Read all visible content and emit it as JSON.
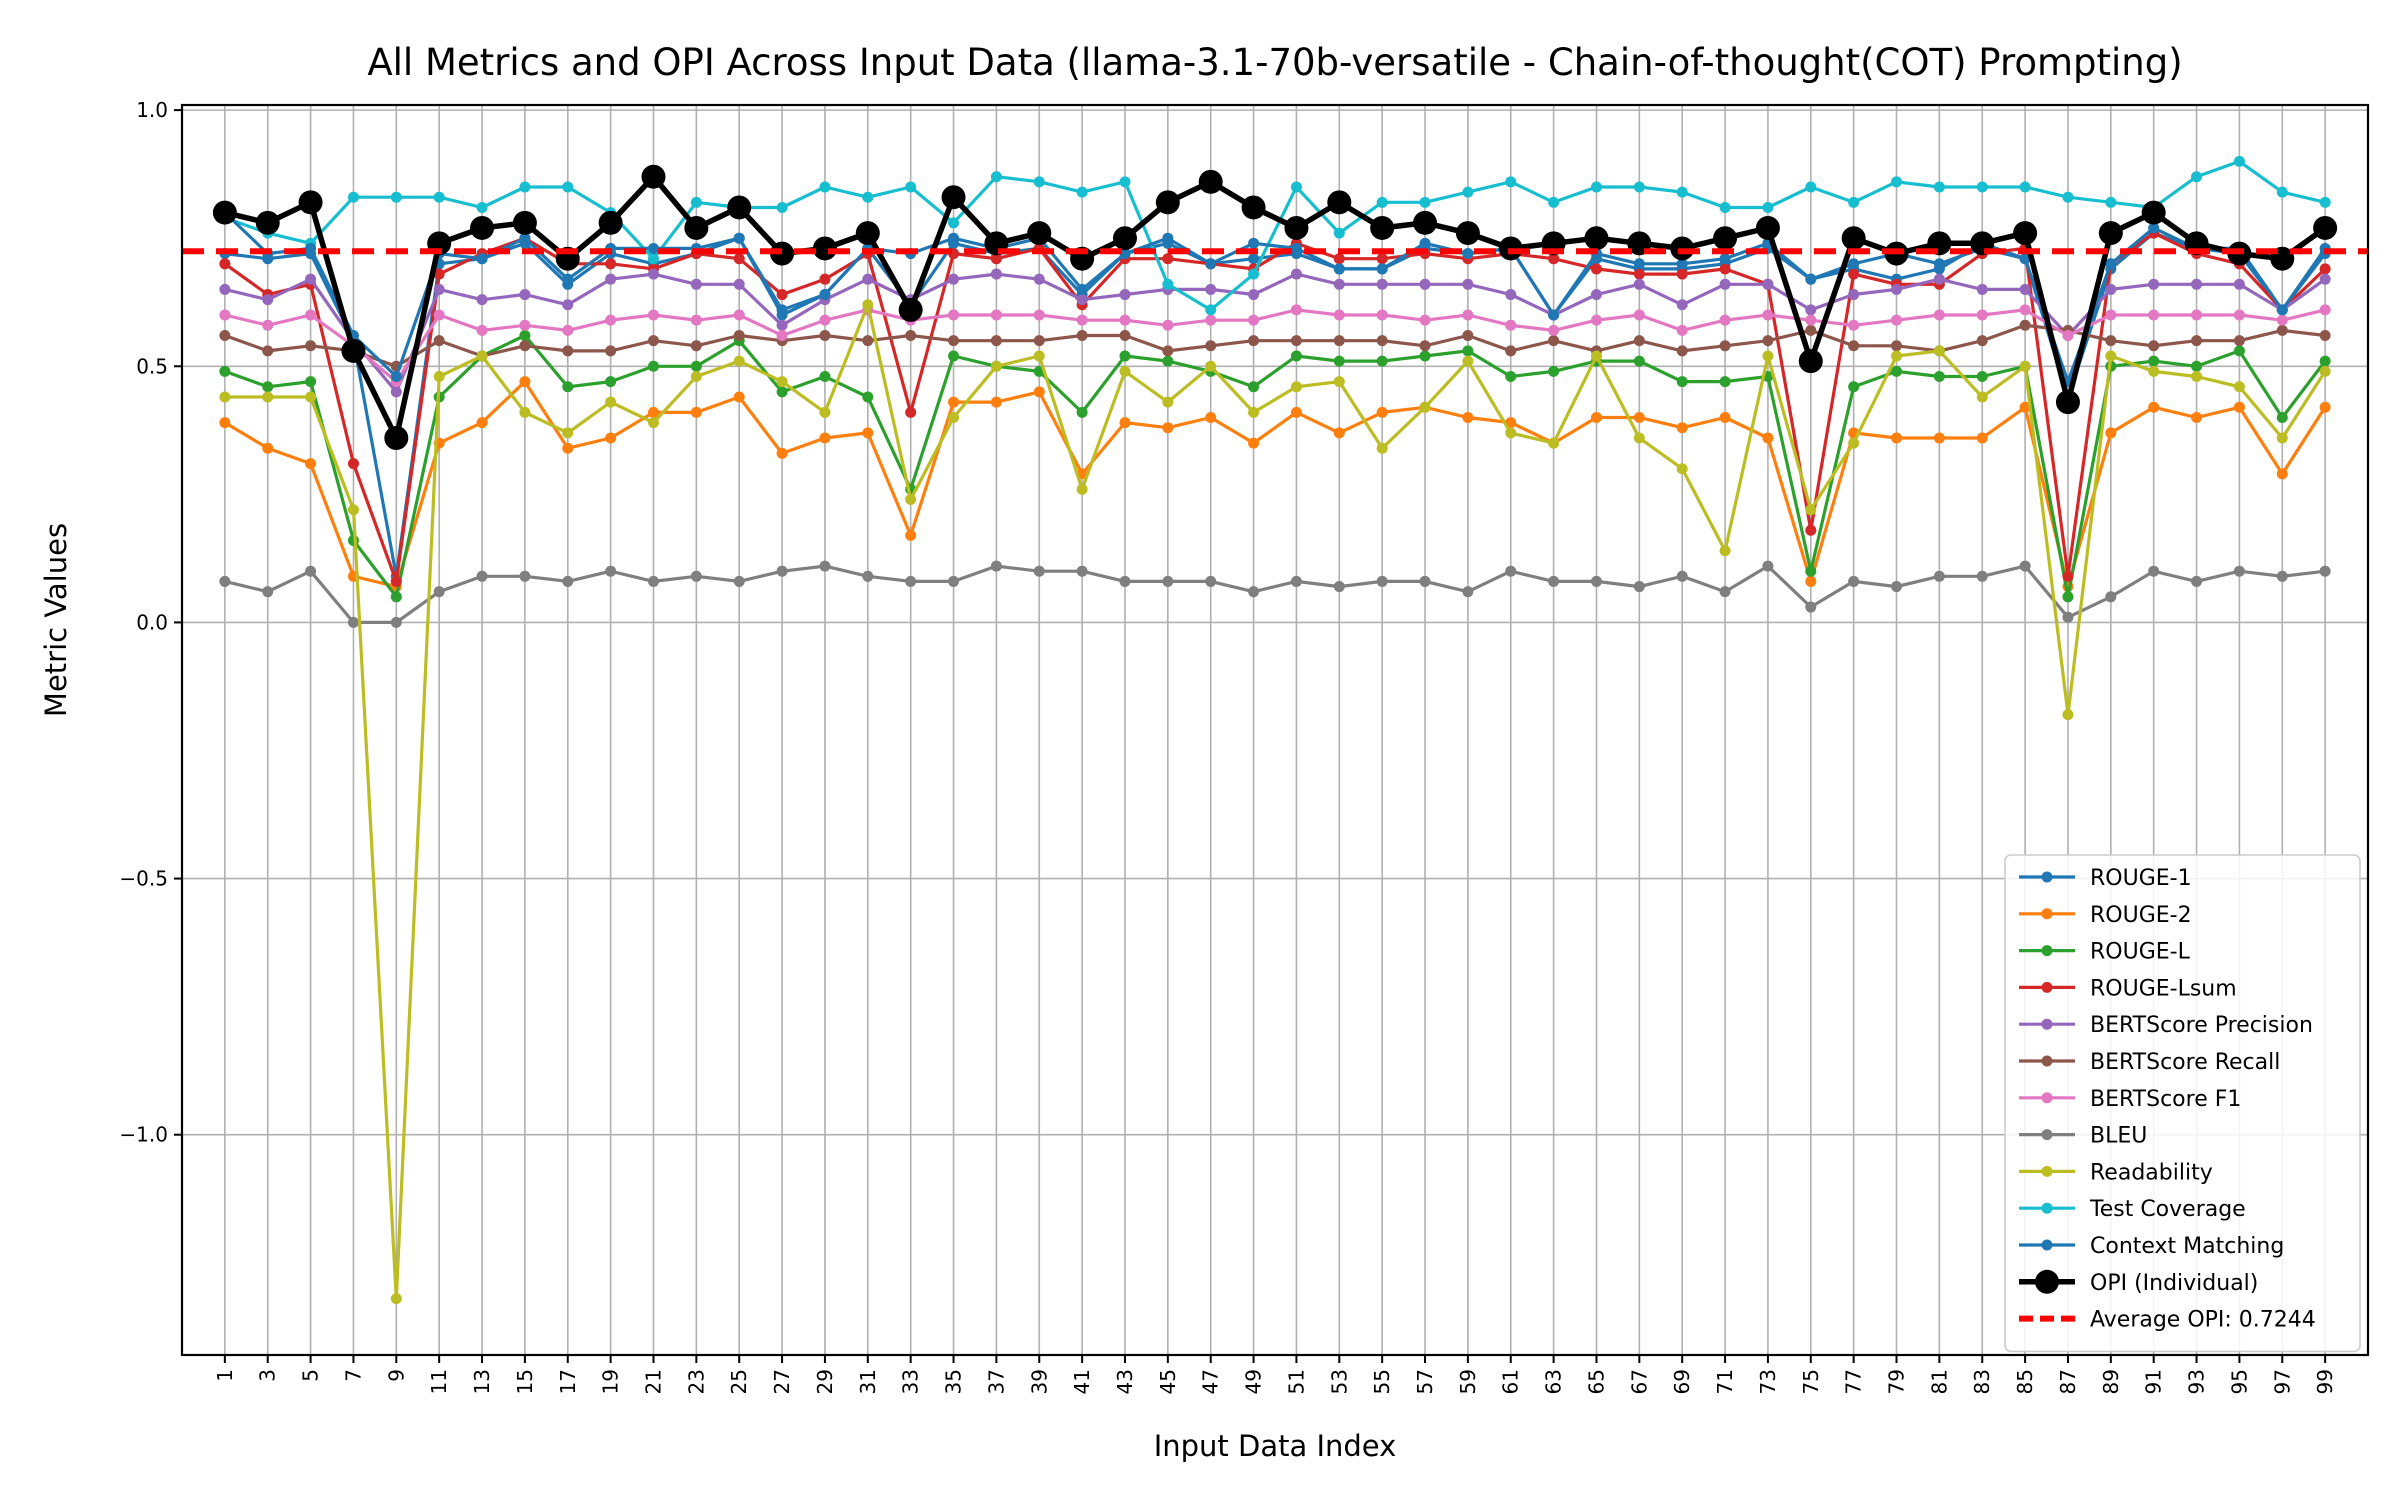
{
  "chart_data": {
    "type": "line",
    "title": "All Metrics and OPI Across Input Data (llama-3.1-70b-versatile - Chain-of-thought(COT) Prompting)",
    "xlabel": "Input Data Index",
    "ylabel": "Metric Values",
    "xlim": [
      -1,
      101
    ],
    "ylim": [
      -1.43,
      1.01
    ],
    "yticks": [
      -1.0,
      -0.5,
      0.0,
      0.5,
      1.0
    ],
    "ytick_labels": [
      "−1.0",
      "−0.5",
      "0.0",
      "0.5",
      "1.0"
    ],
    "xticks": [
      1,
      3,
      5,
      7,
      9,
      11,
      13,
      15,
      17,
      19,
      21,
      23,
      25,
      27,
      29,
      31,
      33,
      35,
      37,
      39,
      41,
      43,
      45,
      47,
      49,
      51,
      53,
      55,
      57,
      59,
      61,
      63,
      65,
      67,
      69,
      71,
      73,
      75,
      77,
      79,
      81,
      83,
      85,
      87,
      89,
      91,
      93,
      95,
      97,
      99
    ],
    "x": [
      1,
      3,
      5,
      7,
      9,
      11,
      13,
      15,
      17,
      19,
      21,
      23,
      25,
      27,
      29,
      31,
      33,
      35,
      37,
      39,
      41,
      43,
      45,
      47,
      49,
      51,
      53,
      55,
      57,
      59,
      61,
      63,
      65,
      67,
      69,
      71,
      73,
      75,
      77,
      79,
      81,
      83,
      85,
      87,
      89,
      91,
      93,
      95,
      97,
      99
    ],
    "grid": true,
    "legend_position": "lower-right",
    "series": [
      {
        "name": "ROUGE-1",
        "color": "#1f77b4",
        "values": [
          0.72,
          0.71,
          0.72,
          0.55,
          0.09,
          0.7,
          0.71,
          0.74,
          0.66,
          0.72,
          0.7,
          0.72,
          0.75,
          0.6,
          0.64,
          0.73,
          0.62,
          0.74,
          0.72,
          0.73,
          0.64,
          0.72,
          0.74,
          0.7,
          0.71,
          0.72,
          0.69,
          0.69,
          0.73,
          0.72,
          0.73,
          0.6,
          0.71,
          0.69,
          0.69,
          0.7,
          0.73,
          0.67,
          0.69,
          0.67,
          0.69,
          0.74,
          0.71,
          0.44,
          0.69,
          0.76,
          0.73,
          0.72,
          0.61,
          0.72
        ]
      },
      {
        "name": "ROUGE-2",
        "color": "#ff7f0e",
        "values": [
          0.39,
          0.34,
          0.31,
          0.09,
          0.07,
          0.35,
          0.39,
          0.47,
          0.34,
          0.36,
          0.41,
          0.41,
          0.44,
          0.33,
          0.36,
          0.37,
          0.17,
          0.43,
          0.43,
          0.45,
          0.29,
          0.39,
          0.38,
          0.4,
          0.35,
          0.41,
          0.37,
          0.41,
          0.42,
          0.4,
          0.39,
          0.35,
          0.4,
          0.4,
          0.38,
          0.4,
          0.36,
          0.08,
          0.37,
          0.36,
          0.36,
          0.36,
          0.42,
          0.07,
          0.37,
          0.42,
          0.4,
          0.42,
          0.29,
          0.42
        ]
      },
      {
        "name": "ROUGE-L",
        "color": "#2ca02c",
        "values": [
          0.49,
          0.46,
          0.47,
          0.16,
          0.05,
          0.44,
          0.52,
          0.56,
          0.46,
          0.47,
          0.5,
          0.5,
          0.55,
          0.45,
          0.48,
          0.44,
          0.26,
          0.52,
          0.5,
          0.49,
          0.41,
          0.52,
          0.51,
          0.49,
          0.46,
          0.52,
          0.51,
          0.51,
          0.52,
          0.53,
          0.48,
          0.49,
          0.51,
          0.51,
          0.47,
          0.47,
          0.48,
          0.1,
          0.46,
          0.49,
          0.48,
          0.48,
          0.5,
          0.05,
          0.5,
          0.51,
          0.5,
          0.53,
          0.4,
          0.51
        ]
      },
      {
        "name": "ROUGE-Lsum",
        "color": "#d62728",
        "values": [
          0.7,
          0.64,
          0.66,
          0.31,
          0.08,
          0.68,
          0.72,
          0.75,
          0.7,
          0.7,
          0.69,
          0.72,
          0.71,
          0.64,
          0.67,
          0.72,
          0.41,
          0.72,
          0.71,
          0.73,
          0.62,
          0.71,
          0.71,
          0.7,
          0.69,
          0.74,
          0.71,
          0.71,
          0.72,
          0.71,
          0.72,
          0.71,
          0.69,
          0.68,
          0.68,
          0.69,
          0.66,
          0.18,
          0.68,
          0.66,
          0.66,
          0.72,
          0.73,
          0.09,
          0.7,
          0.76,
          0.72,
          0.7,
          0.61,
          0.69
        ]
      },
      {
        "name": "BERTScore Precision",
        "color": "#9467bd",
        "values": [
          0.65,
          0.63,
          0.67,
          0.55,
          0.45,
          0.65,
          0.63,
          0.64,
          0.62,
          0.67,
          0.68,
          0.66,
          0.66,
          0.58,
          0.63,
          0.67,
          0.63,
          0.67,
          0.68,
          0.67,
          0.63,
          0.64,
          0.65,
          0.65,
          0.64,
          0.68,
          0.66,
          0.66,
          0.66,
          0.66,
          0.64,
          0.6,
          0.64,
          0.66,
          0.62,
          0.66,
          0.66,
          0.61,
          0.64,
          0.65,
          0.67,
          0.65,
          0.65,
          0.56,
          0.65,
          0.66,
          0.66,
          0.66,
          0.61,
          0.67
        ]
      },
      {
        "name": "BERTScore Recall",
        "color": "#8c564b",
        "values": [
          0.56,
          0.53,
          0.54,
          0.53,
          0.5,
          0.55,
          0.52,
          0.54,
          0.53,
          0.53,
          0.55,
          0.54,
          0.56,
          0.55,
          0.56,
          0.55,
          0.56,
          0.55,
          0.55,
          0.55,
          0.56,
          0.56,
          0.53,
          0.54,
          0.55,
          0.55,
          0.55,
          0.55,
          0.54,
          0.56,
          0.53,
          0.55,
          0.53,
          0.55,
          0.53,
          0.54,
          0.55,
          0.57,
          0.54,
          0.54,
          0.53,
          0.55,
          0.58,
          0.57,
          0.55,
          0.54,
          0.55,
          0.55,
          0.57,
          0.56
        ]
      },
      {
        "name": "BERTScore F1",
        "color": "#e377c2",
        "values": [
          0.6,
          0.58,
          0.6,
          0.54,
          0.47,
          0.6,
          0.57,
          0.58,
          0.57,
          0.59,
          0.6,
          0.59,
          0.6,
          0.56,
          0.59,
          0.61,
          0.59,
          0.6,
          0.6,
          0.6,
          0.59,
          0.59,
          0.58,
          0.59,
          0.59,
          0.61,
          0.6,
          0.6,
          0.59,
          0.6,
          0.58,
          0.57,
          0.59,
          0.6,
          0.57,
          0.59,
          0.6,
          0.59,
          0.58,
          0.59,
          0.6,
          0.6,
          0.61,
          0.56,
          0.6,
          0.6,
          0.6,
          0.6,
          0.59,
          0.61
        ]
      },
      {
        "name": "BLEU",
        "color": "#7f7f7f",
        "values": [
          0.08,
          0.06,
          0.1,
          0.0,
          0.0,
          0.06,
          0.09,
          0.09,
          0.08,
          0.1,
          0.08,
          0.09,
          0.08,
          0.1,
          0.11,
          0.09,
          0.08,
          0.08,
          0.11,
          0.1,
          0.1,
          0.08,
          0.08,
          0.08,
          0.06,
          0.08,
          0.07,
          0.08,
          0.08,
          0.06,
          0.1,
          0.08,
          0.08,
          0.07,
          0.09,
          0.06,
          0.11,
          0.03,
          0.08,
          0.07,
          0.09,
          0.09,
          0.11,
          0.01,
          0.05,
          0.1,
          0.08,
          0.1,
          0.09,
          0.1
        ]
      },
      {
        "name": "Readability",
        "color": "#bcbd22",
        "values": [
          0.44,
          0.44,
          0.44,
          0.22,
          -1.32,
          0.48,
          0.52,
          0.41,
          0.37,
          0.43,
          0.39,
          0.48,
          0.51,
          0.47,
          0.41,
          0.62,
          0.24,
          0.4,
          0.5,
          0.52,
          0.26,
          0.49,
          0.43,
          0.5,
          0.41,
          0.46,
          0.47,
          0.34,
          0.42,
          0.51,
          0.37,
          0.35,
          0.52,
          0.36,
          0.3,
          0.14,
          0.52,
          0.22,
          0.35,
          0.52,
          0.53,
          0.44,
          0.5,
          -0.18,
          0.52,
          0.49,
          0.48,
          0.46,
          0.36,
          0.49
        ]
      },
      {
        "name": "Test Coverage",
        "color": "#17becf",
        "values": [
          0.79,
          0.76,
          0.74,
          0.83,
          0.83,
          0.83,
          0.81,
          0.85,
          0.85,
          0.8,
          0.71,
          0.82,
          0.81,
          0.81,
          0.85,
          0.83,
          0.85,
          0.78,
          0.87,
          0.86,
          0.84,
          0.86,
          0.66,
          0.61,
          0.68,
          0.85,
          0.76,
          0.82,
          0.82,
          0.84,
          0.86,
          0.82,
          0.85,
          0.85,
          0.84,
          0.81,
          0.81,
          0.85,
          0.82,
          0.86,
          0.85,
          0.85,
          0.85,
          0.83,
          0.82,
          0.81,
          0.87,
          0.9,
          0.84,
          0.82
        ]
      },
      {
        "name": "Context Matching",
        "color": "#1f77b4",
        "values": [
          0.8,
          0.72,
          0.73,
          0.56,
          0.48,
          0.72,
          0.71,
          0.75,
          0.67,
          0.73,
          0.73,
          0.73,
          0.75,
          0.61,
          0.64,
          0.73,
          0.72,
          0.75,
          0.73,
          0.75,
          0.65,
          0.72,
          0.75,
          0.7,
          0.74,
          0.73,
          0.69,
          0.69,
          0.74,
          0.72,
          0.73,
          0.6,
          0.72,
          0.7,
          0.7,
          0.71,
          0.74,
          0.67,
          0.7,
          0.72,
          0.7,
          0.73,
          0.71,
          0.47,
          0.7,
          0.77,
          0.73,
          0.73,
          0.61,
          0.73
        ]
      },
      {
        "name": "OPI (Individual)",
        "color": "#000000",
        "values": [
          0.8,
          0.78,
          0.82,
          0.53,
          0.36,
          0.74,
          0.77,
          0.78,
          0.71,
          0.78,
          0.87,
          0.77,
          0.81,
          0.72,
          0.73,
          0.76,
          0.61,
          0.83,
          0.74,
          0.76,
          0.71,
          0.75,
          0.82,
          0.86,
          0.81,
          0.77,
          0.82,
          0.77,
          0.78,
          0.76,
          0.73,
          0.74,
          0.75,
          0.74,
          0.73,
          0.75,
          0.77,
          0.51,
          0.75,
          0.72,
          0.74,
          0.74,
          0.76,
          0.43,
          0.76,
          0.8,
          0.74,
          0.72,
          0.71,
          0.77
        ]
      }
    ],
    "reference_line": {
      "name": "Average OPI: 0.7244",
      "value": 0.7244,
      "color": "#ff0000",
      "style": "dashed"
    }
  }
}
